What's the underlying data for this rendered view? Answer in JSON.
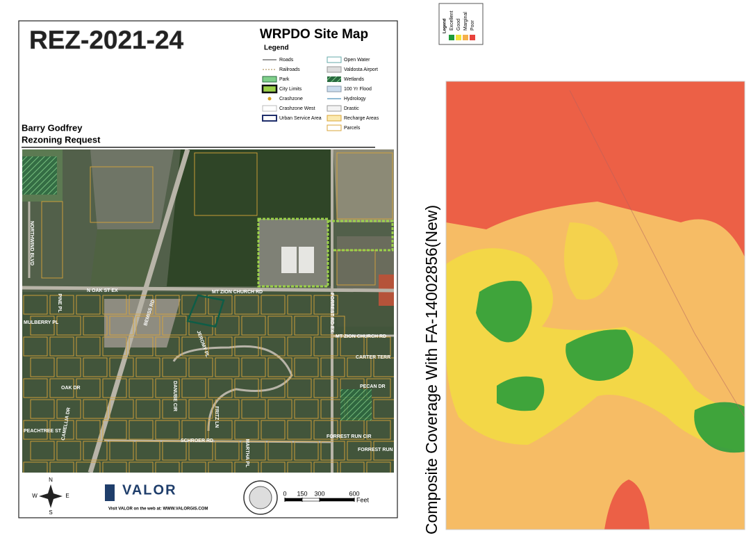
{
  "site_map": {
    "title": "REZ-2021-24",
    "map_title": "WRPDO Site Map",
    "legend_title": "Legend",
    "legend_items": [
      "Roads",
      "Railroads",
      "Park",
      "City Limits",
      "Crashzone",
      "Crashzone West",
      "Urban Service Area",
      "Open Water",
      "Valdosta Airport",
      "Wetlands",
      "100 Yr Flood",
      "Hydrology",
      "Drastic",
      "Recharge Areas",
      "Parcels"
    ],
    "applicant": "Barry Godfrey",
    "request": "Rezoning Request",
    "street_labels": [
      "NORTHWIND BLVD",
      "PINE PL",
      "N OAK ST EX",
      "MT ZION CHURCH RD",
      "BEMISS RD",
      "JEROMY PL",
      "MULBERRY PL",
      "MT ZION CHURCH RD",
      "CARTER TERR",
      "PECAN DR",
      "OAK DR",
      "DANUBE CIR",
      "FRITZ LN",
      "PEACHTREE ST",
      "CAMELLIA DR",
      "SCHROER RD",
      "MARTHA PL",
      "FORREST RUN CIR",
      "FORREST RUN",
      "FORREST RD EX"
    ],
    "compass": [
      "N",
      "E",
      "S",
      "W"
    ],
    "logo": "VALOR",
    "website": "Visit VALOR on the web at: WWW.VALORGIS.COM",
    "scale": {
      "ticks": [
        0,
        150,
        300,
        600
      ],
      "unit": "Feet"
    }
  },
  "coverage_map": {
    "title": "Composite Coverage With FA-14002856(New)",
    "legend_title": "Legend",
    "legend": [
      {
        "name": "Excellent",
        "color": "#1e9b3a"
      },
      {
        "name": "Good",
        "color": "#f2e33a"
      },
      {
        "name": "Marginal",
        "color": "#f5b04a"
      },
      {
        "name": "Poor",
        "color": "#e8423c"
      }
    ]
  }
}
